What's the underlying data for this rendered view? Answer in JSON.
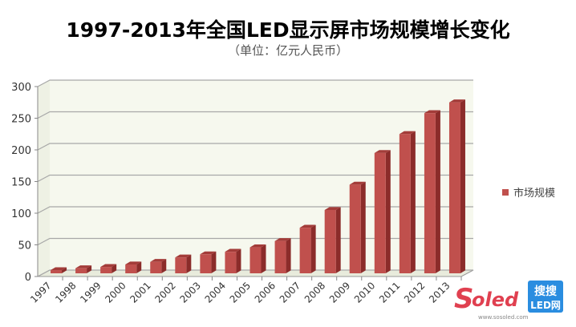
{
  "chart_data": {
    "type": "bar",
    "title": "1997-2013年全国LED显示屏市场规模增长变化",
    "subtitle": "（单位：亿元人民币）",
    "categories": [
      "1997",
      "1998",
      "1999",
      "2000",
      "2001",
      "2002",
      "2003",
      "2004",
      "2005",
      "2006",
      "2007",
      "2008",
      "2009",
      "2010",
      "2011",
      "2012",
      "2013"
    ],
    "series": [
      {
        "name": "市场规模",
        "values": [
          5,
          8,
          10,
          14,
          18,
          25,
          30,
          34,
          41,
          51,
          72,
          100,
          140,
          190,
          220,
          253,
          270
        ],
        "color": "#c0504d"
      }
    ],
    "ylim": [
      0,
      300
    ],
    "yticks": [
      "0",
      "50",
      "100",
      "150",
      "200",
      "250",
      "300"
    ],
    "grid": true,
    "legend": "right",
    "style": "3d-column"
  },
  "logo": {
    "text": "Soled",
    "sub": "搜搜LED网",
    "url_text": "www.sosoled.com"
  }
}
